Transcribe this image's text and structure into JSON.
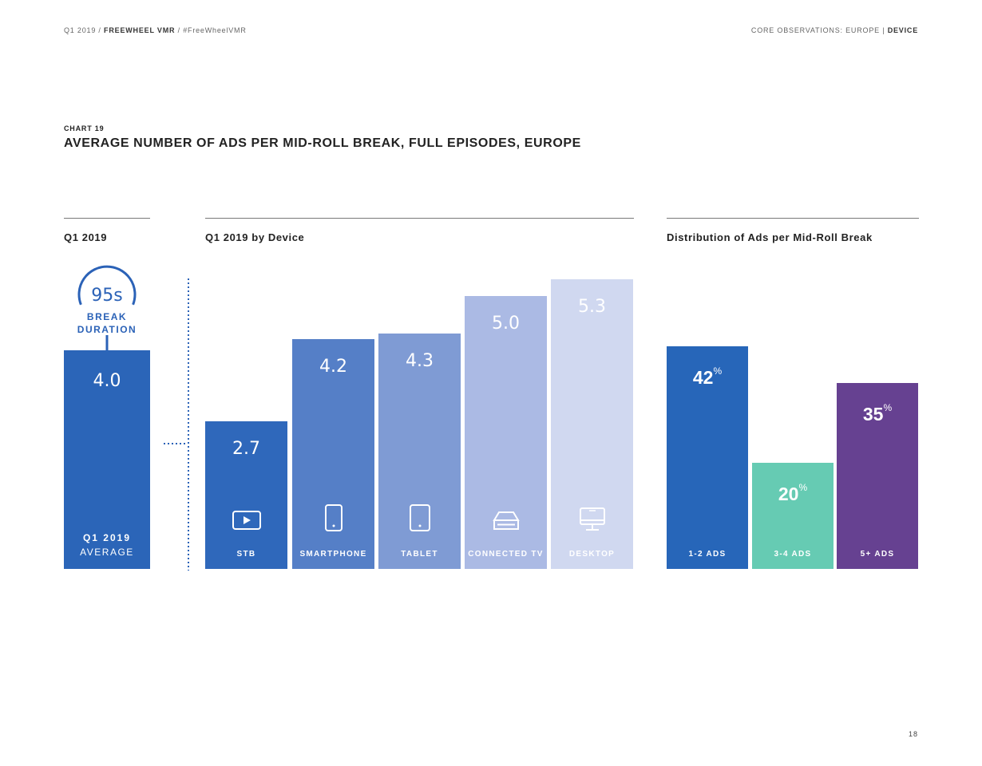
{
  "header": {
    "left_period": "Q1 2019 /",
    "left_brand": "FREEWHEEL VMR",
    "left_tag": "/ #FreeWheelVMR",
    "right_section": "CORE OBSERVATIONS: EUROPE |",
    "right_topic": "DEVICE"
  },
  "chart_number": "CHART 19",
  "chart_title": "AVERAGE NUMBER OF ADS PER MID-ROLL BREAK, FULL EPISODES, EUROPE",
  "page_number": "18",
  "colors": {
    "avg": "#2b65b8",
    "stb": "#2f68bb",
    "smartphone": "#557fc7",
    "tablet": "#7f9bd4",
    "connected_tv": "#abbae4",
    "desktop": "#d0d8f0",
    "ads_1_2": "#2766b9",
    "ads_3_4": "#66cbb3",
    "ads_5_plus": "#664191",
    "connector": "#2b62b7"
  },
  "chart_data": [
    {
      "type": "bar",
      "panel_title": "Q1 2019",
      "categories": [
        "Q1 2019 AVERAGE"
      ],
      "values": [
        4.0
      ],
      "value_labels": [
        "4.0"
      ],
      "bar_label_line1": "Q1 2019",
      "bar_label_line2": "AVERAGE",
      "annotation": {
        "value": "95s",
        "line1": "BREAK",
        "line2": "DURATION"
      },
      "ylim": [
        0,
        5.3
      ]
    },
    {
      "type": "bar",
      "panel_title": "Q1 2019 by Device",
      "categories": [
        "STB",
        "SMARTPHONE",
        "TABLET",
        "CONNECTED TV",
        "DESKTOP"
      ],
      "values": [
        2.7,
        4.2,
        4.3,
        5.0,
        5.3
      ],
      "value_labels": [
        "2.7",
        "4.2",
        "4.3",
        "5.0",
        "5.3"
      ],
      "icons": [
        "stb-icon",
        "smartphone-icon",
        "tablet-icon",
        "connected-tv-icon",
        "desktop-icon"
      ],
      "ylim": [
        0,
        5.3
      ]
    },
    {
      "type": "bar",
      "panel_title": "Distribution of Ads per Mid-Roll Break",
      "categories": [
        "1-2 ADS",
        "3-4 ADS",
        "5+ ADS"
      ],
      "values": [
        42,
        20,
        35
      ],
      "value_labels": [
        "42",
        "20",
        "35"
      ],
      "unit": "%",
      "ylim": [
        0,
        54.6
      ]
    }
  ]
}
